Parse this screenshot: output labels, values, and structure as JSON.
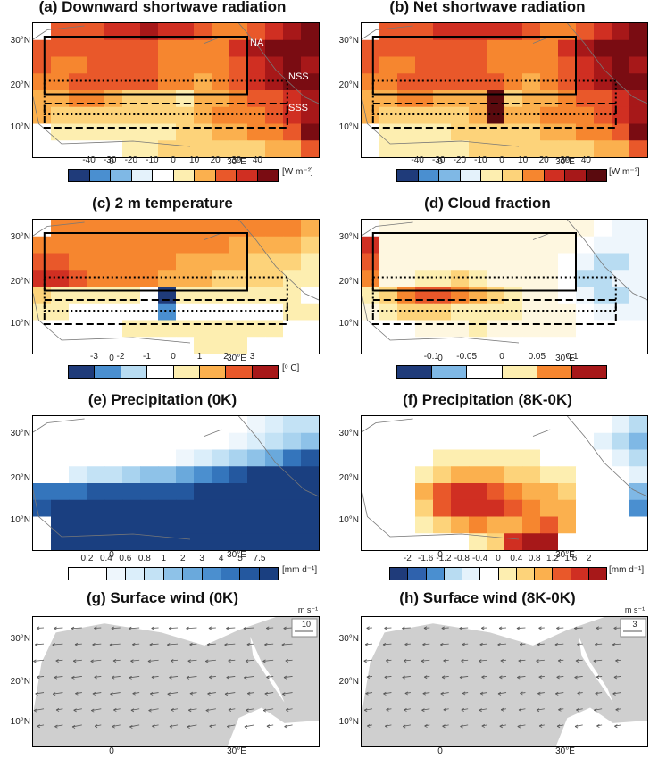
{
  "chart_data": [
    {
      "id": "a",
      "type": "heatmap",
      "title": "(a) Downward shortwave radiation",
      "unit": "[W m⁻²]",
      "colorbar_ticks": [
        "-40",
        "-30",
        "-20",
        "-10",
        "0",
        "10",
        "20",
        "30",
        "40"
      ],
      "colors": [
        "#1f3b7a",
        "#2f62ad",
        "#4a8fd0",
        "#7fb8e5",
        "#b8dcf2",
        "#e4f2fb",
        "#ffffff",
        "#ffffff",
        "#fdeeb0",
        "#fdd37a",
        "#fbb04e",
        "#f6862f",
        "#e9582a",
        "#d02f22",
        "#a71819",
        "#7a0c12"
      ],
      "box_labels": [
        "NA",
        "NSS",
        "SSS"
      ],
      "x_ticks": [
        "0",
        "30°E"
      ],
      "y_ticks": [
        "30°N",
        "20°N",
        "10°N"
      ],
      "grid_rows": [
        [
          -1,
          12,
          12,
          12,
          13,
          13,
          14,
          13,
          13,
          12,
          11,
          11,
          12,
          13,
          14,
          15
        ],
        [
          12,
          12,
          12,
          12,
          12,
          12,
          12,
          11,
          11,
          11,
          11,
          13,
          14,
          15,
          15,
          15
        ],
        [
          12,
          11,
          11,
          12,
          12,
          12,
          12,
          11,
          11,
          11,
          11,
          12,
          13,
          14,
          15,
          14
        ],
        [
          11,
          11,
          12,
          12,
          12,
          12,
          12,
          11,
          11,
          10,
          11,
          12,
          13,
          14,
          15,
          15
        ],
        [
          10,
          10,
          11,
          11,
          10,
          9,
          9,
          9,
          8,
          10,
          10,
          11,
          12,
          12,
          13,
          14
        ],
        [
          10,
          9,
          9,
          9,
          9,
          9,
          9,
          9,
          9,
          10,
          11,
          11,
          11,
          12,
          13,
          14
        ],
        [
          -1,
          8,
          8,
          8,
          8,
          8,
          8,
          8,
          9,
          9,
          10,
          10,
          11,
          11,
          12,
          15
        ],
        [
          -1,
          7,
          7,
          7,
          7,
          8,
          8,
          9,
          9,
          9,
          9,
          9,
          9,
          10,
          10,
          12
        ]
      ]
    },
    {
      "id": "b",
      "type": "heatmap",
      "title": "(b) Net shortwave radiation",
      "unit": "[W m⁻²]",
      "colorbar_ticks": [
        "-40",
        "-30",
        "-20",
        "-10",
        "0",
        "10",
        "20",
        "30",
        "40"
      ],
      "x_ticks": [
        "0",
        "30°E"
      ],
      "y_ticks": [
        "30°N",
        "20°N",
        "10°N"
      ],
      "grid_rows": [
        [
          -1,
          11,
          11,
          11,
          12,
          12,
          12,
          12,
          12,
          11,
          10,
          10,
          11,
          12,
          13,
          14
        ],
        [
          11,
          11,
          11,
          11,
          11,
          11,
          11,
          10,
          10,
          10,
          10,
          12,
          13,
          14,
          14,
          14
        ],
        [
          11,
          10,
          10,
          11,
          11,
          11,
          11,
          10,
          10,
          10,
          10,
          11,
          12,
          13,
          14,
          13
        ],
        [
          10,
          10,
          11,
          11,
          11,
          11,
          11,
          11,
          10,
          9,
          10,
          11,
          12,
          13,
          14,
          14
        ],
        [
          9,
          9,
          10,
          10,
          9,
          9,
          9,
          15,
          8,
          9,
          9,
          10,
          11,
          11,
          12,
          13
        ],
        [
          9,
          8,
          8,
          8,
          8,
          8,
          9,
          15,
          9,
          9,
          10,
          10,
          10,
          11,
          12,
          13
        ],
        [
          -1,
          7,
          7,
          7,
          7,
          8,
          8,
          8,
          8,
          8,
          9,
          9,
          10,
          10,
          11,
          14
        ],
        [
          -1,
          7,
          7,
          7,
          7,
          7,
          8,
          8,
          8,
          8,
          8,
          8,
          8,
          9,
          9,
          11
        ]
      ]
    },
    {
      "id": "c",
      "type": "heatmap",
      "title": "(c) 2 m temperature",
      "unit": "[ᵒ C]",
      "colorbar_ticks": [
        "-3",
        "-2",
        "-1",
        "0",
        "1",
        "2",
        "3"
      ],
      "colors": [
        "#1f3b7a",
        "#2f62ad",
        "#4a8fd0",
        "#7fb8e5",
        "#b8dcf2",
        "#e4f2fb",
        "#ffffff",
        "#fdeeb0",
        "#fdd37a",
        "#fbb04e",
        "#f6862f",
        "#e9582a",
        "#d02f22",
        "#a71819"
      ],
      "x_ticks": [
        "0",
        "30°E"
      ],
      "y_ticks": [
        "30°N",
        "20°N",
        "10°N"
      ],
      "grid_rows": [
        [
          -1,
          10,
          10,
          10,
          10,
          10,
          10,
          10,
          10,
          10,
          10,
          10,
          10,
          10,
          10,
          9
        ],
        [
          10,
          10,
          10,
          10,
          10,
          10,
          10,
          10,
          10,
          10,
          10,
          9,
          9,
          9,
          9,
          8
        ],
        [
          11,
          11,
          10,
          10,
          10,
          10,
          10,
          10,
          9,
          9,
          9,
          9,
          8,
          8,
          8,
          7
        ],
        [
          12,
          12,
          11,
          10,
          10,
          10,
          10,
          9,
          9,
          9,
          8,
          8,
          8,
          8,
          7,
          7
        ],
        [
          8,
          7,
          7,
          7,
          7,
          7,
          6,
          0,
          7,
          7,
          7,
          7,
          7,
          7,
          7,
          6
        ],
        [
          7,
          7,
          6,
          6,
          6,
          6,
          6,
          2,
          6,
          6,
          6,
          6,
          6,
          6,
          7,
          7
        ],
        [
          -1,
          6,
          6,
          6,
          6,
          7,
          7,
          7,
          7,
          7,
          7,
          7,
          7,
          7,
          6,
          6
        ],
        [
          -1,
          6,
          6,
          6,
          6,
          6,
          6,
          6,
          6,
          7,
          7,
          7,
          6,
          6,
          6,
          6
        ]
      ]
    },
    {
      "id": "d",
      "type": "heatmap",
      "title": "(d) Cloud fraction",
      "colorbar_ticks": [
        "-0.1",
        "-0.05",
        "0",
        "0.05",
        "0.1"
      ],
      "colors": [
        "#1f3b7a",
        "#2f62ad",
        "#4a8fd0",
        "#7fb8e5",
        "#b8dcf2",
        "#eef6fc",
        "#ffffff",
        "#fef7e0",
        "#fdeeb0",
        "#fdd37a",
        "#fbb04e",
        "#f6862f",
        "#e9582a",
        "#d02f22",
        "#a71819"
      ],
      "x_ticks": [
        "0",
        "30°E"
      ],
      "y_ticks": [
        "30°N",
        "20°N",
        "10°N"
      ],
      "grid_rows": [
        [
          -1,
          7,
          7,
          7,
          7,
          7,
          7,
          7,
          7,
          7,
          7,
          7,
          7,
          6,
          5,
          5
        ],
        [
          13,
          7,
          7,
          7,
          7,
          7,
          7,
          7,
          7,
          7,
          7,
          7,
          6,
          5,
          5,
          5
        ],
        [
          12,
          7,
          7,
          7,
          7,
          7,
          7,
          7,
          7,
          7,
          7,
          6,
          5,
          4,
          4,
          5
        ],
        [
          11,
          7,
          7,
          8,
          8,
          9,
          8,
          7,
          7,
          7,
          7,
          6,
          4,
          4,
          5,
          5
        ],
        [
          8,
          9,
          11,
          12,
          12,
          11,
          10,
          9,
          8,
          7,
          7,
          6,
          5,
          4,
          4,
          5
        ],
        [
          7,
          8,
          9,
          9,
          9,
          8,
          8,
          8,
          8,
          7,
          7,
          7,
          6,
          5,
          5,
          5
        ],
        [
          -1,
          6,
          6,
          7,
          7,
          7,
          8,
          7,
          7,
          7,
          7,
          7,
          6,
          6,
          6,
          6
        ],
        [
          -1,
          6,
          6,
          6,
          6,
          6,
          6,
          6,
          6,
          6,
          6,
          6,
          6,
          6,
          6,
          6
        ]
      ]
    },
    {
      "id": "e",
      "type": "heatmap",
      "title": "(e) Precipitation (0K)",
      "unit": "[mm d⁻¹]",
      "colorbar_ticks": [
        "0.2",
        "0.4",
        "0.6",
        "0.8",
        "1",
        "2",
        "3",
        "4",
        "5",
        "7.5"
      ],
      "colors": [
        "#ffffff",
        "#ffffff",
        "#eef6fc",
        "#dbeefa",
        "#c3e2f5",
        "#a9d3ef",
        "#8ec2e8",
        "#6aa9dc",
        "#4b8fcf",
        "#3475bc",
        "#24589f",
        "#1a3f80"
      ],
      "x_ticks": [
        "0",
        "30°E"
      ],
      "y_ticks": [
        "30°N",
        "20°N",
        "10°N"
      ],
      "grid_rows": [
        [
          -1,
          0,
          0,
          0,
          0,
          0,
          0,
          0,
          0,
          0,
          0,
          0,
          2,
          3,
          4,
          4
        ],
        [
          0,
          0,
          0,
          0,
          0,
          0,
          0,
          0,
          0,
          0,
          0,
          2,
          3,
          4,
          5,
          6
        ],
        [
          0,
          0,
          0,
          0,
          0,
          0,
          0,
          1,
          2,
          3,
          4,
          5,
          6,
          7,
          9,
          10
        ],
        [
          0,
          1,
          3,
          4,
          4,
          5,
          6,
          6,
          7,
          8,
          9,
          10,
          11,
          11,
          11,
          11
        ],
        [
          9,
          9,
          9,
          10,
          10,
          10,
          10,
          10,
          10,
          11,
          11,
          11,
          11,
          11,
          11,
          11
        ],
        [
          10,
          11,
          11,
          11,
          11,
          11,
          11,
          11,
          11,
          11,
          11,
          11,
          11,
          11,
          11,
          11
        ],
        [
          -1,
          11,
          11,
          11,
          11,
          11,
          11,
          11,
          11,
          11,
          11,
          11,
          11,
          11,
          11,
          11
        ],
        [
          -1,
          11,
          11,
          11,
          11,
          11,
          11,
          11,
          11,
          11,
          11,
          11,
          11,
          11,
          11,
          11
        ]
      ]
    },
    {
      "id": "f",
      "type": "heatmap",
      "title": "(f) Precipitation (8K-0K)",
      "unit": "[mm d⁻¹]",
      "colorbar_ticks": [
        "-2",
        "-1.6",
        "-1.2",
        "-0.8",
        "-0.4",
        "0",
        "0.4",
        "0.8",
        "1.2",
        "1.6",
        "2"
      ],
      "colors": [
        "#1f3b7a",
        "#2f62ad",
        "#4a8fd0",
        "#7fb8e5",
        "#b8dcf2",
        "#e4f2fb",
        "#ffffff",
        "#fdeeb0",
        "#fdd37a",
        "#fbb04e",
        "#f6862f",
        "#e9582a",
        "#d02f22",
        "#a71819"
      ],
      "x_ticks": [
        "0",
        "30°E"
      ],
      "y_ticks": [
        "30°N",
        "20°N",
        "10°N"
      ],
      "grid_rows": [
        [
          -1,
          6,
          6,
          6,
          6,
          6,
          6,
          6,
          6,
          6,
          6,
          6,
          6,
          6,
          5,
          4
        ],
        [
          6,
          6,
          6,
          6,
          6,
          6,
          6,
          6,
          6,
          6,
          6,
          6,
          6,
          5,
          4,
          3
        ],
        [
          6,
          6,
          6,
          6,
          7,
          7,
          7,
          7,
          7,
          7,
          6,
          6,
          6,
          6,
          5,
          4
        ],
        [
          6,
          6,
          6,
          7,
          8,
          9,
          9,
          9,
          8,
          8,
          7,
          7,
          6,
          6,
          6,
          5
        ],
        [
          6,
          6,
          6,
          9,
          11,
          12,
          12,
          11,
          10,
          9,
          9,
          8,
          6,
          6,
          6,
          3
        ],
        [
          6,
          6,
          6,
          8,
          11,
          12,
          12,
          12,
          11,
          10,
          9,
          9,
          6,
          6,
          6,
          2
        ],
        [
          -1,
          6,
          6,
          7,
          8,
          9,
          10,
          9,
          9,
          10,
          11,
          9,
          6,
          6,
          6,
          6
        ],
        [
          -1,
          6,
          6,
          6,
          6,
          6,
          7,
          8,
          12,
          13,
          13,
          6,
          6,
          6,
          6,
          6
        ]
      ]
    },
    {
      "id": "g",
      "type": "vector",
      "title": "(g) Surface wind (0K)",
      "key_unit": "m s⁻¹",
      "key_value": "10",
      "x_ticks": [
        "0",
        "30°E"
      ],
      "y_ticks": [
        "30°N",
        "20°N",
        "10°N"
      ]
    },
    {
      "id": "h",
      "type": "vector",
      "title": "(h) Surface wind (8K-0K)",
      "key_unit": "m s⁻¹",
      "key_value": "3",
      "x_ticks": [
        "0",
        "30°E"
      ],
      "y_ticks": [
        "30°N",
        "20°N",
        "10°N"
      ]
    }
  ]
}
